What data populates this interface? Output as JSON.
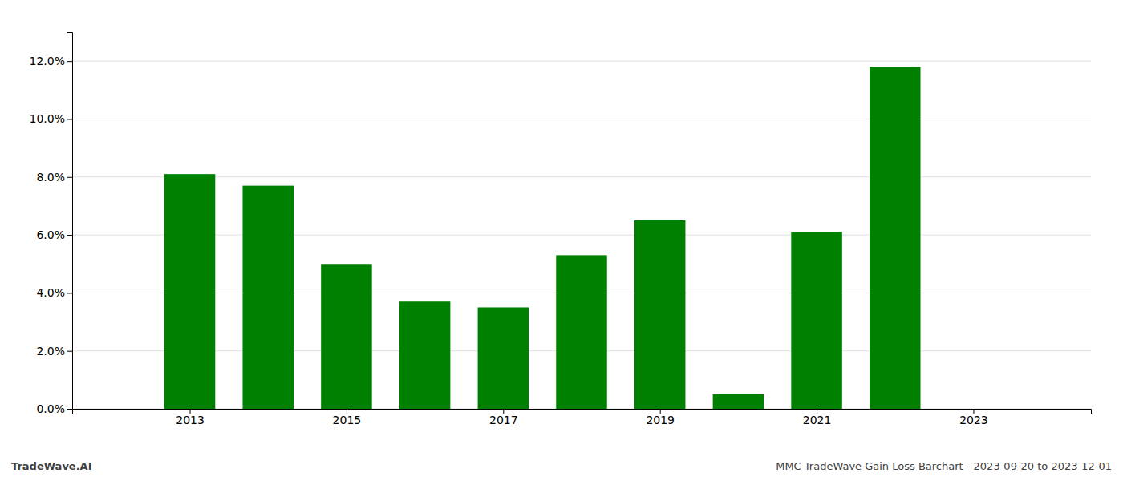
{
  "chart_data": {
    "type": "bar",
    "x": [
      2013,
      2014,
      2015,
      2016,
      2017,
      2018,
      2019,
      2020,
      2021,
      2022
    ],
    "values": [
      0.081,
      0.077,
      0.05,
      0.037,
      0.035,
      0.053,
      0.065,
      0.005,
      0.061,
      0.118
    ],
    "color": "#008000",
    "xlim": [
      2011.5,
      2024.5
    ],
    "xticks": [
      2013,
      2015,
      2017,
      2019,
      2021,
      2023
    ],
    "ylim": [
      0,
      0.13
    ],
    "yticks": [
      {
        "value": 0.0,
        "label": "0.0%"
      },
      {
        "value": 0.02,
        "label": "2.0%"
      },
      {
        "value": 0.04,
        "label": "4.0%"
      },
      {
        "value": 0.06,
        "label": "6.0%"
      },
      {
        "value": 0.08,
        "label": "8.0%"
      },
      {
        "value": 0.1,
        "label": "10.0%"
      },
      {
        "value": 0.12,
        "label": "12.0%"
      }
    ],
    "grid": true,
    "annotations": [
      "TradeWave.AI",
      "MMC TradeWave Gain Loss Barchart - 2023-09-20 to 2023-12-01"
    ]
  }
}
